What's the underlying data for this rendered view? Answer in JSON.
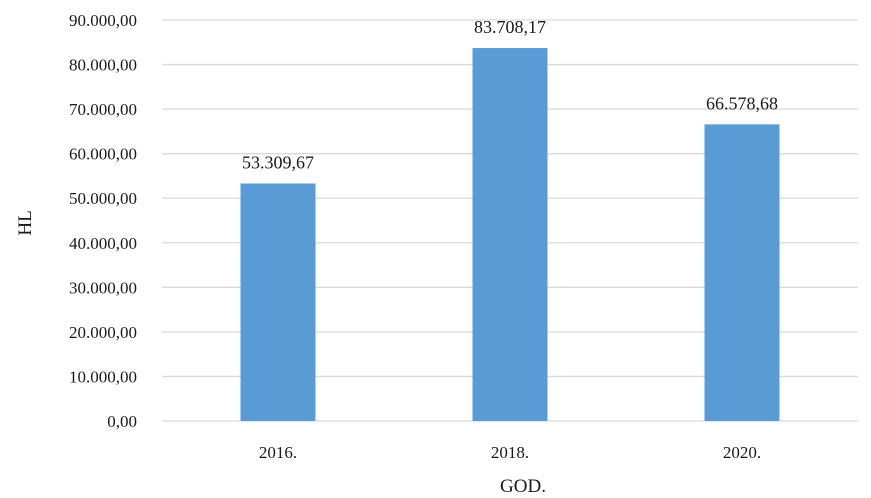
{
  "chart_data": {
    "type": "bar",
    "categories": [
      "2016.",
      "2018.",
      "2020."
    ],
    "values": [
      53309.67,
      83708.17,
      66578.68
    ],
    "value_labels": [
      "53.309,67",
      "83.708,17",
      "66.578,68"
    ],
    "xlabel": "GOD.",
    "ylabel": "HL",
    "ylim": [
      0,
      90000
    ],
    "yticks": [
      0,
      10000,
      20000,
      30000,
      40000,
      50000,
      60000,
      70000,
      80000,
      90000
    ],
    "ytick_labels": [
      "0,00",
      "10.000,00",
      "20.000,00",
      "30.000,00",
      "40.000,00",
      "50.000,00",
      "60.000,00",
      "70.000,00",
      "80.000,00",
      "90.000,00"
    ],
    "grid": true,
    "legend": "none",
    "bar_color": "#5b9bd5",
    "grid_color": "#d9d9d9"
  }
}
